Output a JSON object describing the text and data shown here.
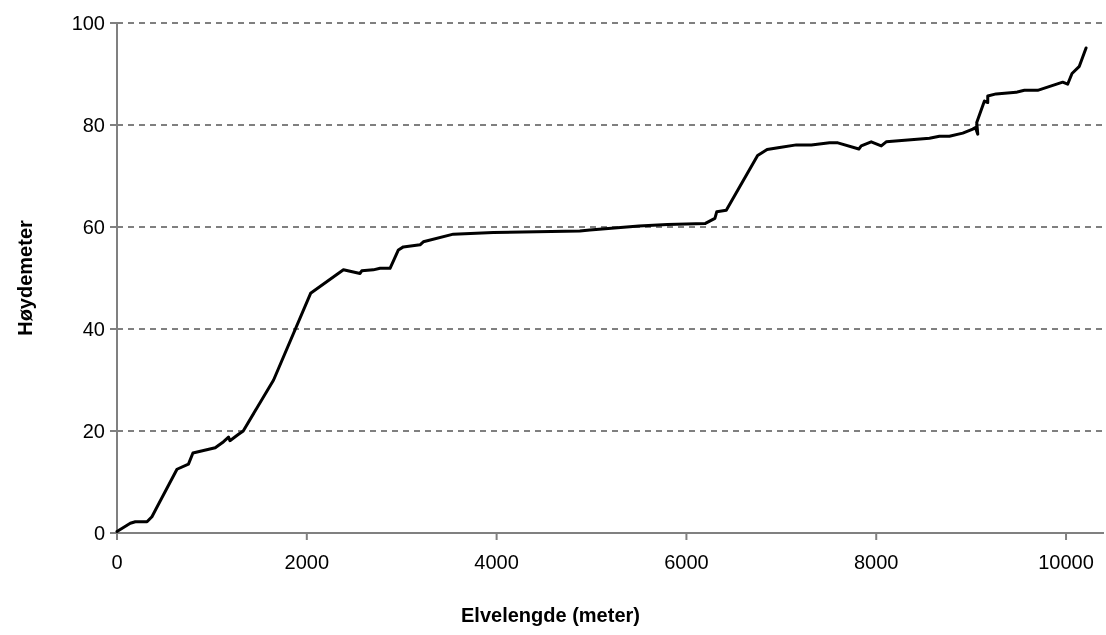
{
  "chart_data": {
    "type": "line",
    "xlabel": "Elvelengde (meter)",
    "ylabel": "Høydemeter",
    "xlim": [
      0,
      10400
    ],
    "xticks": [
      0,
      2000,
      4000,
      6000,
      8000,
      10000
    ],
    "ylim": [
      0,
      100
    ],
    "yticks": [
      0,
      20,
      40,
      60,
      80,
      100
    ],
    "grid": "y",
    "line_style": "solid",
    "marker": "none",
    "series": [
      {
        "color": "#000000",
        "x": [
          0,
          140,
          193,
          316,
          368,
          632,
          753,
          800,
          1035,
          1123,
          1175,
          1190,
          1277,
          1330,
          1650,
          2040,
          2386,
          2561,
          2579,
          2701,
          2772,
          2877,
          2965,
          3017,
          3193,
          3228,
          3544,
          3965,
          4877,
          4982,
          5500,
          5800,
          6200,
          6300,
          6320,
          6420,
          6750,
          6850,
          6982,
          7158,
          7316,
          7508,
          7596,
          7817,
          7842,
          7947,
          8053,
          8105,
          8561,
          8666,
          8771,
          8912,
          9017,
          9045,
          9070,
          9059,
          9140,
          9175,
          9175,
          9263,
          9474,
          9561,
          9701,
          9965,
          10017,
          10063,
          10140,
          10211
        ],
        "values": [
          0.3,
          1.9,
          2.2,
          2.2,
          3.2,
          12.5,
          13.5,
          15.7,
          16.7,
          17.9,
          18.8,
          18.1,
          19.3,
          20,
          30,
          47,
          51.6,
          50.9,
          51.4,
          51.6,
          51.9,
          51.9,
          55.5,
          56.1,
          56.5,
          57.1,
          58.6,
          58.9,
          59.2,
          59.4,
          60.2,
          60.5,
          60.7,
          61.7,
          63,
          63.3,
          74,
          75.2,
          75.6,
          76.1,
          76.1,
          76.5,
          76.5,
          75.3,
          75.9,
          76.7,
          75.9,
          76.7,
          77.4,
          77.8,
          77.8,
          78.4,
          79.2,
          79.5,
          78.2,
          80.5,
          84.7,
          84.4,
          85.7,
          86.1,
          86.4,
          86.8,
          86.8,
          88.4,
          88,
          90.1,
          91.5,
          95.1
        ]
      }
    ]
  }
}
